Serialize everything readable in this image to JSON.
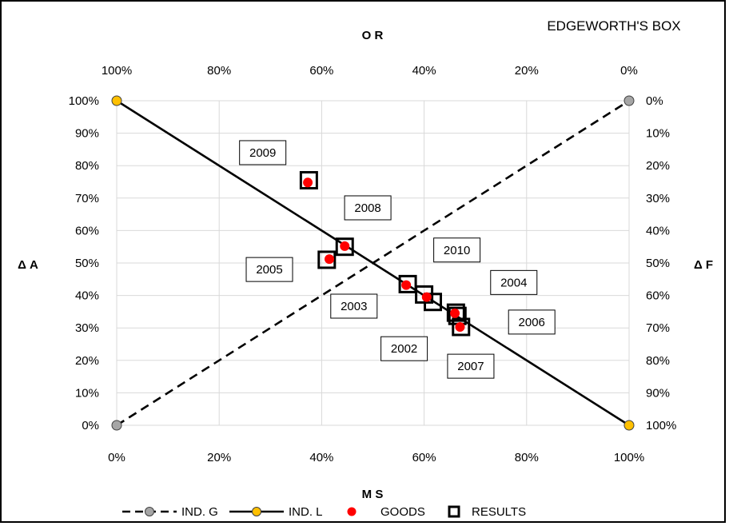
{
  "chart_data": {
    "type": "scatter",
    "title": "EDGEWORTH'S BOX",
    "axes": {
      "bottom": {
        "label": "M S",
        "ticks": [
          "0%",
          "20%",
          "40%",
          "60%",
          "80%",
          "100%"
        ],
        "range": [
          0,
          1
        ]
      },
      "top": {
        "label": "O R",
        "ticks": [
          "100%",
          "80%",
          "60%",
          "40%",
          "20%",
          "0%"
        ],
        "range": [
          1,
          0
        ]
      },
      "left": {
        "label": "Δ A",
        "ticks": [
          "0%",
          "10%",
          "20%",
          "30%",
          "40%",
          "50%",
          "60%",
          "70%",
          "80%",
          "90%",
          "100%"
        ],
        "range": [
          0,
          1
        ]
      },
      "right": {
        "label": "Δ F",
        "ticks": [
          "100%",
          "90%",
          "80%",
          "70%",
          "60%",
          "50%",
          "40%",
          "30%",
          "20%",
          "10%",
          "0%"
        ],
        "range": [
          1,
          0
        ]
      }
    },
    "grid": true,
    "legend_position": "bottom",
    "series": [
      {
        "name": "IND. G",
        "style": "dashed-line",
        "color": "#000000",
        "marker_color": "#a6a6a6",
        "points": [
          [
            0,
            0
          ],
          [
            1,
            1
          ]
        ]
      },
      {
        "name": "IND. L",
        "style": "solid-line",
        "color": "#000000",
        "marker_color": "#ffc000",
        "points": [
          [
            0,
            1
          ],
          [
            1,
            0
          ]
        ]
      },
      {
        "name": "GOODS",
        "style": "marker-dot",
        "color": "#ff0000",
        "points": [
          [
            0.373,
            0.748
          ],
          [
            0.415,
            0.512
          ],
          [
            0.445,
            0.552
          ],
          [
            0.565,
            0.432
          ],
          [
            0.605,
            0.395
          ],
          [
            0.66,
            0.345
          ],
          [
            0.67,
            0.303
          ]
        ]
      },
      {
        "name": "RESULTS",
        "style": "marker-square",
        "color": "#000000",
        "points": [
          [
            0.375,
            0.755
          ],
          [
            0.41,
            0.51
          ],
          [
            0.445,
            0.55
          ],
          [
            0.568,
            0.435
          ],
          [
            0.6,
            0.403
          ],
          [
            0.617,
            0.38
          ],
          [
            0.662,
            0.347
          ],
          [
            0.665,
            0.337
          ],
          [
            0.672,
            0.303
          ]
        ]
      }
    ],
    "annotations": [
      {
        "text": "2009",
        "x": 0.285,
        "y": 0.84
      },
      {
        "text": "2008",
        "x": 0.49,
        "y": 0.67
      },
      {
        "text": "2010",
        "x": 0.664,
        "y": 0.54
      },
      {
        "text": "2005",
        "x": 0.298,
        "y": 0.48
      },
      {
        "text": "2004",
        "x": 0.775,
        "y": 0.44
      },
      {
        "text": "2003",
        "x": 0.463,
        "y": 0.367
      },
      {
        "text": "2006",
        "x": 0.81,
        "y": 0.318
      },
      {
        "text": "2002",
        "x": 0.561,
        "y": 0.236
      },
      {
        "text": "2007",
        "x": 0.691,
        "y": 0.182
      }
    ]
  }
}
